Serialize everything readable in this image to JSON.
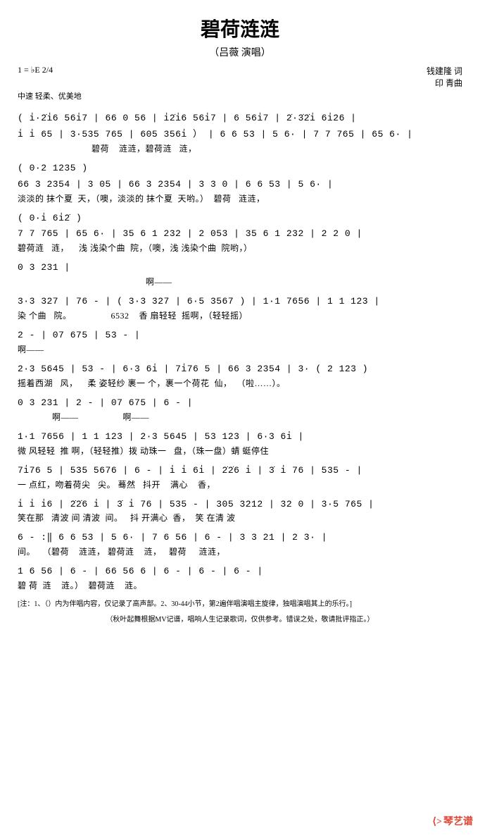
{
  "title": "碧荷涟涟",
  "subtitle": "（吕薇 演唱）",
  "key": "1 = ♭E",
  "time_sig": "2/4",
  "tempo": "中速 轻柔、优美地",
  "composer_lyric": "钱建隆 词",
  "composer_music": "印 青曲",
  "lines": [
    {
      "notation": "( i̇·2̇i̇6 56i̇7 | 66 0 56 | i̇2̇i̇6 56i̇7 | 6 56i̇7 | 2̇·3̇2̇i̇ 6i̇26 |",
      "lyric": ""
    },
    {
      "notation": "i̇ i̇ 65 | 3·535 765 | 605 356i̇ ） | 6 6 53 | 5 6· | 7 7 765 | 65 6· |",
      "lyric": "                              碧荷    涟涟，碧荷涟   涟，"
    },
    {
      "notation": "                                   ( 0·2 1235 )",
      "lyric": ""
    },
    {
      "notation": "66 3 2354 | 3    05 | 66 3 2354 | 3 3  0     | 6 6 53 | 5 6· |",
      "lyric": "淡淡的 抹个夏  天，（噢，淡淡的 抹个夏  天哟。）  碧荷   涟涟，"
    },
    {
      "notation": "                                                  ( 0·i̇ 6i̇2̇ )",
      "lyric": ""
    },
    {
      "notation": "7 7 765 | 65 6· | 35 6 1 232 | 2  053 | 35 6 1 232 | 2 2  0    |",
      "lyric": "碧荷涟   涟，    浅 浅染个曲  院，（噢，浅 浅染个曲  院哟，）"
    },
    {
      "notation": "                                                    0 3  231 |",
      "lyric": "                                                    啊——"
    },
    {
      "notation": "3·3 327 | 76 - | ( 3·3 327 | 6·5 3567 ) | 1·1 7656 | 1 1  123 |",
      "lyric": "染 个曲   院。                6532    香 扇轻轻  摇啊，（轻轻摇）"
    },
    {
      "notation": "2   -   | 07 675 | 53  -   |",
      "lyric": "啊——"
    },
    {
      "notation": "2·3 5645 | 53  -  | 6·3 6i̇ | 7i̇76 5 | 66 3 2354 | 3·  ( 2 123 )",
      "lyric": "摇着西湖   风，    柔 姿轻纱 裹一 个，裹一个荷花  仙，  （啦……）。"
    },
    {
      "notation": "              0 3   231 | 2   -   | 07 675 | 6   -   |",
      "lyric": "              啊——                  啊——"
    },
    {
      "notation": "1·1 7656 | 1 1  123 | 2·3 5645 | 53  123 | 6·3 6i̇ |",
      "lyric": "微 风轻轻  推 啊，（轻轻推）拨 动珠一   盘，（珠一盘）蜻 蜓停住"
    },
    {
      "notation": "7i̇76 5 | 535 5676 | 6 - | i̇ i̇ 6i̇ | 2̇2̇6 i̇ | 3̇ i̇ 76 | 535 - |",
      "lyric": "一 点红，吻着荷尖   尖。 蓦然   抖开    满心    香，"
    },
    {
      "notation": "i̇ i̇ i̇6 | 2̇2̇6 i̇ | 3̇ i̇ 76 | 535 - | 305 3212 | 32 0 | 3·5 765 |",
      "lyric": "笑在那   清波 间 清波  间。   抖 开满心  香，  笑 在清 波"
    },
    {
      "notation": "6  - :‖ 6 6 53 | 5 6· | 7 6 56 | 6  - | 3 3 21 | 2 3· |",
      "lyric": "间。   （碧荷    涟涟， 碧荷涟    涟，   碧荷     涟涟，"
    },
    {
      "notation": "1  6  56 | 6  -  | 66 56 6 | 6  -  | 6  -  | 6  -  |",
      "lyric": "碧 荷  涟    涟。）  碧荷涟    涟。"
    }
  ],
  "footer_note1": "[注：1、（）内为伴唱内容，仅记录了高声部。2、30-44小节，第2遍伴唱演唱主旋律，独唱演唱其上的乐行。]",
  "footer_note2": "（秋叶起舞根据MV记谱，唱响人生记录歌词，仅供参考。错误之处，敬请批评指正。）",
  "watermark": "琴艺谱"
}
